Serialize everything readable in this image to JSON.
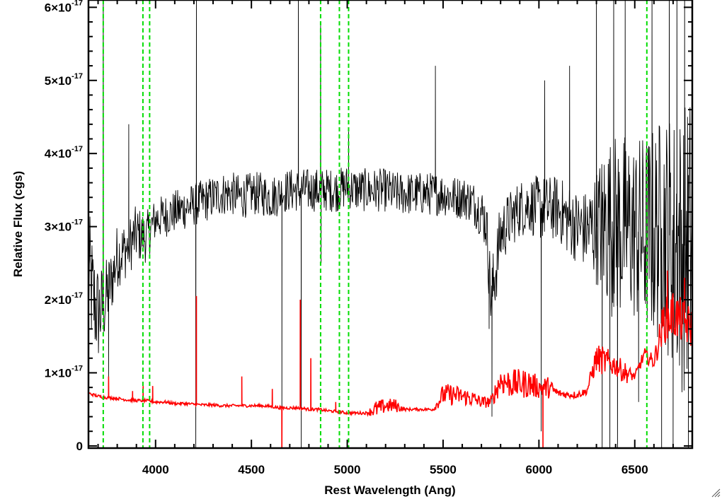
{
  "chart_data": {
    "type": "line",
    "xlabel": "Rest Wavelength (Ang)",
    "ylabel": "Relative Flux (cgs)",
    "xlim": [
      3650,
      6800
    ],
    "ylim": [
      -0.03,
      6.1
    ],
    "y_unit_exponent": "-17",
    "xticks": [
      {
        "value": 4000,
        "label": "4000"
      },
      {
        "value": 4500,
        "label": "4500"
      },
      {
        "value": 5000,
        "label": "5000"
      },
      {
        "value": 5500,
        "label": "5500"
      },
      {
        "value": 6000,
        "label": "6000"
      },
      {
        "value": 6500,
        "label": "6500"
      }
    ],
    "yticks": [
      {
        "value": 0,
        "mant": "0",
        "exp": ""
      },
      {
        "value": 1,
        "mant": "1×10",
        "exp": "-17"
      },
      {
        "value": 2,
        "mant": "2×10",
        "exp": "-17"
      },
      {
        "value": 3,
        "mant": "3×10",
        "exp": "-17"
      },
      {
        "value": 4,
        "mant": "4×10",
        "exp": "-17"
      },
      {
        "value": 5,
        "mant": "5×10",
        "exp": "-17"
      },
      {
        "value": 6,
        "mant": "6×10",
        "exp": "-17"
      }
    ],
    "vertical_lines": [
      3727,
      3934,
      3969,
      4861,
      4959,
      5007,
      6563
    ],
    "series": [
      {
        "color": "#000000",
        "x": [
          3650,
          3675,
          3700,
          3725,
          3750,
          3775,
          3800,
          3850,
          3900,
          3950,
          4000,
          4050,
          4100,
          4150,
          4200,
          4250,
          4300,
          4350,
          4400,
          4450,
          4500,
          4550,
          4600,
          4650,
          4700,
          4750,
          4800,
          4850,
          4900,
          4950,
          5000,
          5050,
          5100,
          5150,
          5200,
          5250,
          5300,
          5350,
          5400,
          5450,
          5500,
          5550,
          5600,
          5650,
          5700,
          5725,
          5750,
          5775,
          5800,
          5850,
          5900,
          5950,
          6000,
          6050,
          6100,
          6150,
          6200,
          6250,
          6300,
          6350,
          6400,
          6450,
          6500,
          6550,
          6600,
          6650,
          6700,
          6750,
          6800
        ],
        "y": [
          2.4,
          2.0,
          1.8,
          1.9,
          2.1,
          2.3,
          2.6,
          2.7,
          2.9,
          2.85,
          3.1,
          3.15,
          3.2,
          3.25,
          3.3,
          3.35,
          3.4,
          3.45,
          3.45,
          3.4,
          3.45,
          3.45,
          3.4,
          3.45,
          3.5,
          3.5,
          3.5,
          3.5,
          3.5,
          3.5,
          3.55,
          3.5,
          3.5,
          3.5,
          3.5,
          3.45,
          3.45,
          3.45,
          3.45,
          3.45,
          3.45,
          3.4,
          3.4,
          3.35,
          3.2,
          3.05,
          2.0,
          2.4,
          2.9,
          3.1,
          3.25,
          3.3,
          3.25,
          3.25,
          3.25,
          3.1,
          3.0,
          2.95,
          3.0,
          3.05,
          3.0,
          3.0,
          2.95,
          2.9,
          2.9,
          3.0,
          2.8,
          2.7,
          2.9
        ],
        "noise": [
          0.9,
          0.8,
          0.7,
          0.6,
          0.5,
          0.45,
          0.45,
          0.4,
          0.4,
          0.35,
          0.3,
          0.3,
          0.3,
          0.3,
          0.3,
          0.3,
          0.3,
          0.3,
          0.3,
          0.3,
          0.3,
          0.3,
          0.3,
          0.3,
          0.3,
          0.3,
          0.3,
          0.3,
          0.3,
          0.3,
          0.3,
          0.3,
          0.3,
          0.3,
          0.3,
          0.3,
          0.3,
          0.3,
          0.3,
          0.3,
          0.3,
          0.3,
          0.3,
          0.3,
          0.35,
          0.4,
          0.5,
          0.5,
          0.45,
          0.4,
          0.4,
          0.4,
          0.45,
          0.45,
          0.45,
          0.5,
          0.5,
          0.55,
          0.8,
          1.2,
          1.3,
          1.3,
          1.3,
          1.4,
          1.5,
          1.6,
          1.8,
          2.0,
          2.0
        ],
        "spikes": [
          {
            "x": 3727,
            "y": 6.5
          },
          {
            "x": 3755,
            "y": 0.8
          },
          {
            "x": 3860,
            "y": 4.4
          },
          {
            "x": 4210,
            "y": -0.4
          },
          {
            "x": 4213,
            "y": 6.4
          },
          {
            "x": 4659,
            "y": -0.4
          },
          {
            "x": 4745,
            "y": 6.5
          },
          {
            "x": 4760,
            "y": -0.4
          },
          {
            "x": 4861,
            "y": 5.75
          },
          {
            "x": 4864,
            "y": 2.5
          },
          {
            "x": 5007,
            "y": 4.3
          },
          {
            "x": 5460,
            "y": 5.2
          },
          {
            "x": 5740,
            "y": 1.6
          },
          {
            "x": 5755,
            "y": 0.4
          },
          {
            "x": 6012,
            "y": 0.2
          },
          {
            "x": 6030,
            "y": 5.0
          },
          {
            "x": 6160,
            "y": 5.2
          },
          {
            "x": 6300,
            "y": 6.5
          },
          {
            "x": 6330,
            "y": -0.4
          },
          {
            "x": 6370,
            "y": -0.4
          },
          {
            "x": 6390,
            "y": 6.5
          },
          {
            "x": 6410,
            "y": -0.4
          },
          {
            "x": 6450,
            "y": 6.5
          },
          {
            "x": 6520,
            "y": 0.6
          },
          {
            "x": 6590,
            "y": 6.5
          },
          {
            "x": 6640,
            "y": -0.4
          },
          {
            "x": 6680,
            "y": 6.5
          },
          {
            "x": 6700,
            "y": -0.4
          },
          {
            "x": 6720,
            "y": 6.5
          },
          {
            "x": 6760,
            "y": 6.5
          },
          {
            "x": 6780,
            "y": -0.4
          }
        ]
      },
      {
        "color": "#ff0000",
        "x": [
          3650,
          3700,
          3750,
          3800,
          3850,
          3900,
          3950,
          4000,
          4050,
          4100,
          4150,
          4200,
          4250,
          4300,
          4350,
          4400,
          4450,
          4500,
          4550,
          4600,
          4650,
          4700,
          4750,
          4800,
          4850,
          4900,
          4950,
          5000,
          5050,
          5100,
          5150,
          5200,
          5250,
          5300,
          5350,
          5400,
          5450,
          5500,
          5550,
          5600,
          5650,
          5700,
          5750,
          5800,
          5850,
          5900,
          5950,
          6000,
          6050,
          6100,
          6150,
          6200,
          6250,
          6300,
          6350,
          6400,
          6450,
          6500,
          6550,
          6600,
          6650,
          6700,
          6750,
          6800
        ],
        "y": [
          0.72,
          0.68,
          0.66,
          0.65,
          0.63,
          0.62,
          0.62,
          0.6,
          0.6,
          0.58,
          0.58,
          0.57,
          0.56,
          0.56,
          0.55,
          0.55,
          0.55,
          0.55,
          0.55,
          0.54,
          0.52,
          0.52,
          0.52,
          0.5,
          0.5,
          0.48,
          0.47,
          0.45,
          0.45,
          0.45,
          0.5,
          0.55,
          0.55,
          0.5,
          0.5,
          0.5,
          0.5,
          0.7,
          0.7,
          0.68,
          0.65,
          0.6,
          0.6,
          0.9,
          0.85,
          0.85,
          0.85,
          0.8,
          0.8,
          0.72,
          0.7,
          0.7,
          0.75,
          1.2,
          1.15,
          1.1,
          1.0,
          0.95,
          1.25,
          1.15,
          1.7,
          1.8,
          1.7,
          1.6
        ],
        "noise": [
          0.02,
          0.02,
          0.02,
          0.02,
          0.02,
          0.02,
          0.02,
          0.02,
          0.02,
          0.02,
          0.02,
          0.02,
          0.02,
          0.02,
          0.02,
          0.02,
          0.02,
          0.02,
          0.02,
          0.02,
          0.02,
          0.02,
          0.02,
          0.02,
          0.02,
          0.02,
          0.02,
          0.02,
          0.02,
          0.02,
          0.12,
          0.1,
          0.1,
          0.02,
          0.02,
          0.02,
          0.02,
          0.15,
          0.15,
          0.12,
          0.12,
          0.08,
          0.08,
          0.2,
          0.2,
          0.2,
          0.2,
          0.15,
          0.15,
          0.05,
          0.05,
          0.05,
          0.05,
          0.2,
          0.2,
          0.15,
          0.15,
          0.05,
          0.1,
          0.1,
          0.3,
          0.35,
          0.3,
          0.3
        ],
        "spikes": [
          {
            "x": 3755,
            "y": 0.95
          },
          {
            "x": 3880,
            "y": 0.75
          },
          {
            "x": 3935,
            "y": 0.82
          },
          {
            "x": 3985,
            "y": 0.82
          },
          {
            "x": 4213,
            "y": 2.05
          },
          {
            "x": 4450,
            "y": 0.95
          },
          {
            "x": 4609,
            "y": 0.78
          },
          {
            "x": 4659,
            "y": -0.2
          },
          {
            "x": 4755,
            "y": 2.0
          },
          {
            "x": 4810,
            "y": 1.2
          },
          {
            "x": 4940,
            "y": 0.6
          },
          {
            "x": 6021,
            "y": -0.2
          },
          {
            "x": 6670,
            "y": 2.4
          },
          {
            "x": 6760,
            "y": 2.3
          }
        ]
      }
    ]
  }
}
